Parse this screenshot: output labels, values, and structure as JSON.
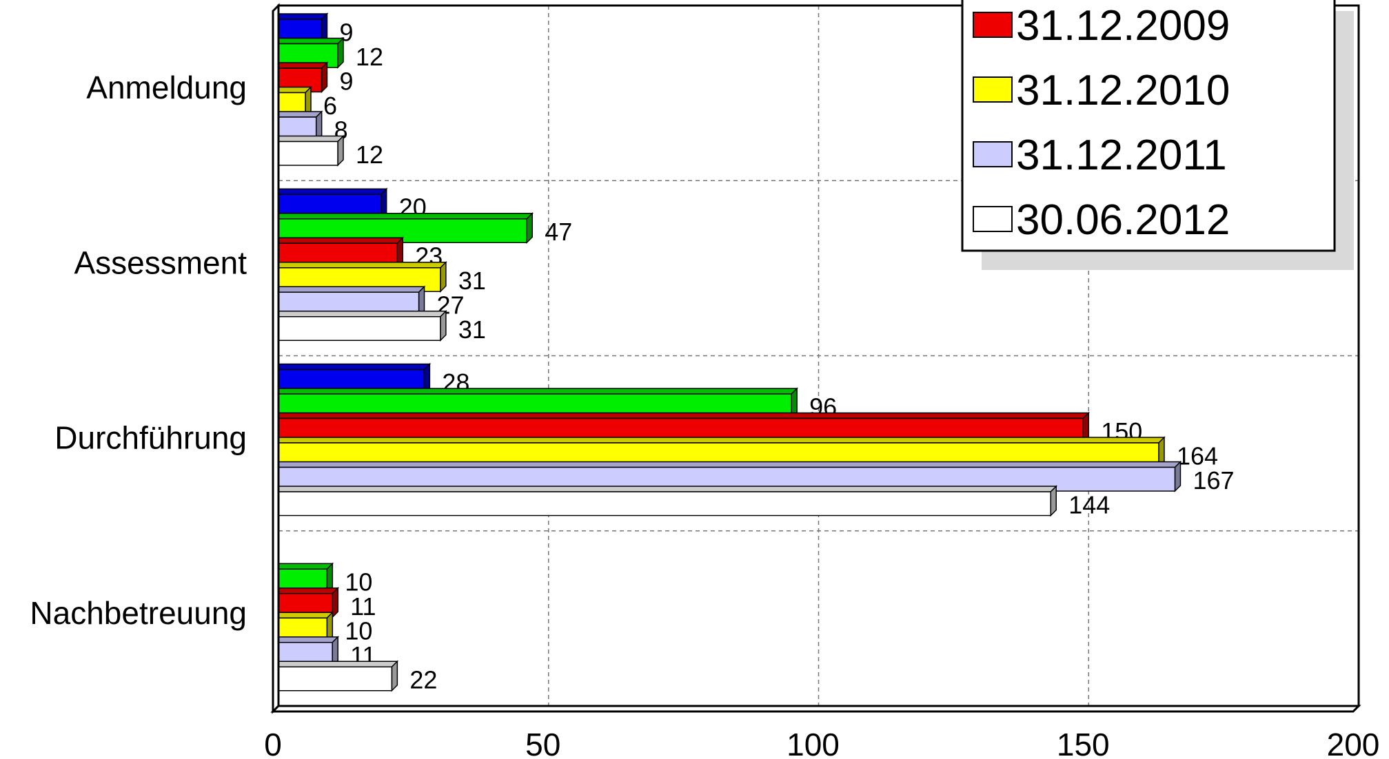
{
  "chart_data": {
    "type": "bar",
    "orientation": "horizontal",
    "categories": [
      "Anmeldung",
      "Assessment",
      "Durchführung",
      "Nachbetreuung"
    ],
    "series": [
      {
        "name": "",
        "color": "#0000ee",
        "values": [
          9,
          20,
          28,
          null
        ]
      },
      {
        "name": "",
        "color": "#00ee00",
        "values": [
          12,
          47,
          96,
          10
        ]
      },
      {
        "name": "31.12.2009",
        "color": "#ee0000",
        "values": [
          9,
          23,
          150,
          11
        ]
      },
      {
        "name": "31.12.2010",
        "color": "#ffff00",
        "values": [
          6,
          31,
          164,
          10
        ]
      },
      {
        "name": "31.12.2011",
        "color": "#ccccff",
        "values": [
          8,
          27,
          167,
          11
        ]
      },
      {
        "name": "30.06.2012",
        "color": "#ffffff",
        "values": [
          12,
          31,
          144,
          22
        ]
      }
    ],
    "xlim": [
      0,
      200
    ],
    "xticks": [
      "0",
      "50",
      "100",
      "150",
      "200"
    ],
    "grid": true,
    "legend": "top-right",
    "legend_entries": [
      "31.12.2009",
      "31.12.2010",
      "31.12.2011",
      "30.06.2012"
    ]
  }
}
